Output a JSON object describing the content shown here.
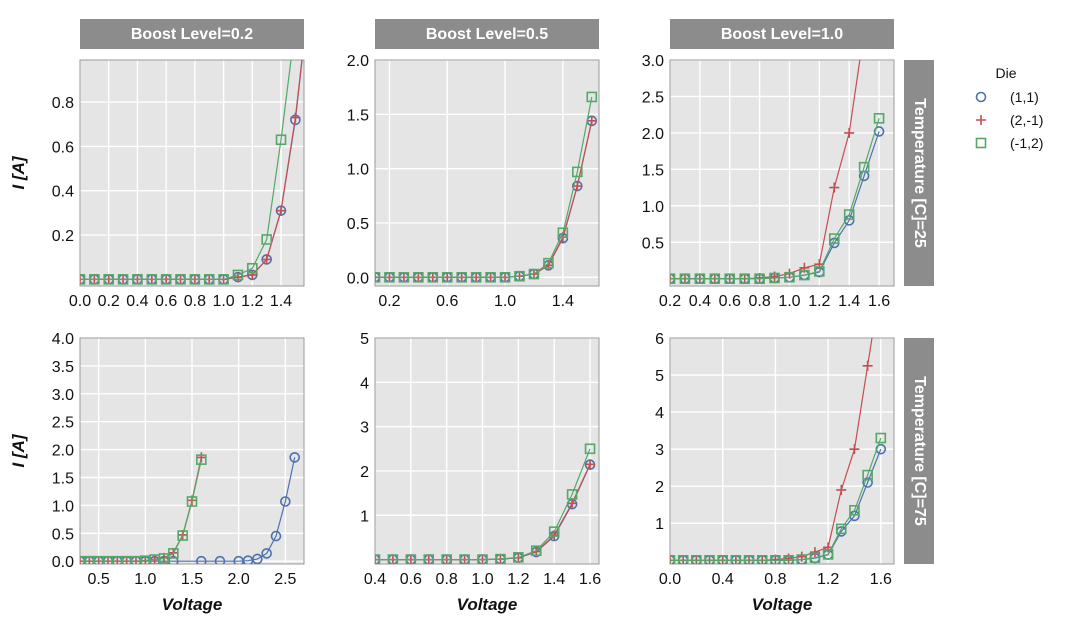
{
  "legend": {
    "title": "Die",
    "entries": [
      {
        "label": "(1,1)",
        "color": "#4c72b0",
        "marker": "circle"
      },
      {
        "label": "(2,-1)",
        "color": "#c44e52",
        "marker": "plus"
      },
      {
        "label": "(-1,2)",
        "color": "#55a868",
        "marker": "square"
      }
    ]
  },
  "chart_data": [
    {
      "type": "line",
      "strip_top": "Boost Level=0.2",
      "strip_right": "",
      "xlabel": "",
      "ylabel": "I [A]",
      "xlim": [
        0.0,
        1.56
      ],
      "ylim": [
        -0.03,
        0.99
      ],
      "xticks": [
        0.0,
        0.2,
        0.4,
        0.6,
        0.8,
        1.0,
        1.2,
        1.4
      ],
      "xtick_labels": [
        "0.0",
        "0.2",
        "0.4",
        "0.6",
        "0.8",
        "1.0",
        "1.2",
        "1.4"
      ],
      "yticks": [
        0.2,
        0.4,
        0.6,
        0.8
      ],
      "ytick_labels": [
        "0.2",
        "0.4",
        "0.6",
        "0.8"
      ],
      "grid": true,
      "series": [
        {
          "name": "(1,1)",
          "x": [
            0.0,
            0.1,
            0.2,
            0.3,
            0.4,
            0.5,
            0.6,
            0.7,
            0.8,
            0.9,
            1.0,
            1.1,
            1.2,
            1.3,
            1.4,
            1.5,
            1.6
          ],
          "y": [
            0.0,
            0.0,
            0.0,
            0.0,
            0.0,
            0.0,
            0.0,
            0.0,
            0.0,
            0.0,
            0.0,
            0.01,
            0.02,
            0.09,
            0.31,
            0.72,
            1.3
          ]
        },
        {
          "name": "(2,-1)",
          "x": [
            0.0,
            0.1,
            0.2,
            0.3,
            0.4,
            0.5,
            0.6,
            0.7,
            0.8,
            0.9,
            1.0,
            1.1,
            1.2,
            1.3,
            1.4,
            1.5,
            1.6
          ],
          "y": [
            0.0,
            0.0,
            0.0,
            0.0,
            0.0,
            0.0,
            0.0,
            0.0,
            0.0,
            0.0,
            0.0,
            0.01,
            0.02,
            0.09,
            0.31,
            0.73,
            1.3
          ]
        },
        {
          "name": "(-1,2)",
          "x": [
            0.0,
            0.1,
            0.2,
            0.3,
            0.4,
            0.5,
            0.6,
            0.7,
            0.8,
            0.9,
            1.0,
            1.1,
            1.2,
            1.3,
            1.4,
            1.5
          ],
          "y": [
            0.0,
            0.0,
            0.0,
            0.0,
            0.0,
            0.0,
            0.0,
            0.0,
            0.0,
            0.0,
            0.0,
            0.02,
            0.05,
            0.18,
            0.63,
            1.15
          ]
        }
      ]
    },
    {
      "type": "line",
      "strip_top": "Boost Level=0.5",
      "strip_right": "",
      "xlabel": "",
      "ylabel": "",
      "xlim": [
        0.1,
        1.65
      ],
      "ylim": [
        -0.08,
        2.0
      ],
      "xticks": [
        0.2,
        0.6,
        1.0,
        1.4
      ],
      "xtick_labels": [
        "0.2",
        "0.6",
        "1.0",
        "1.4"
      ],
      "yticks": [
        0.0,
        0.5,
        1.0,
        1.5,
        2.0
      ],
      "ytick_labels": [
        "0.0",
        "0.5",
        "1.0",
        "1.5",
        "2.0"
      ],
      "grid": true,
      "series": [
        {
          "name": "(1,1)",
          "x": [
            0.1,
            0.2,
            0.3,
            0.4,
            0.5,
            0.6,
            0.7,
            0.8,
            0.9,
            1.0,
            1.1,
            1.2,
            1.3,
            1.4,
            1.5,
            1.6
          ],
          "y": [
            0.0,
            0.0,
            0.0,
            0.0,
            0.0,
            0.0,
            0.0,
            0.0,
            0.0,
            0.0,
            0.01,
            0.03,
            0.11,
            0.36,
            0.84,
            1.44
          ]
        },
        {
          "name": "(2,-1)",
          "x": [
            0.1,
            0.2,
            0.3,
            0.4,
            0.5,
            0.6,
            0.7,
            0.8,
            0.9,
            1.0,
            1.1,
            1.2,
            1.3,
            1.4,
            1.5,
            1.6
          ],
          "y": [
            0.0,
            0.0,
            0.0,
            0.0,
            0.0,
            0.0,
            0.0,
            0.0,
            0.0,
            0.0,
            0.01,
            0.03,
            0.11,
            0.37,
            0.84,
            1.44
          ]
        },
        {
          "name": "(-1,2)",
          "x": [
            0.1,
            0.2,
            0.3,
            0.4,
            0.5,
            0.6,
            0.7,
            0.8,
            0.9,
            1.0,
            1.1,
            1.2,
            1.3,
            1.4,
            1.5,
            1.6
          ],
          "y": [
            0.0,
            0.0,
            0.0,
            0.0,
            0.0,
            0.0,
            0.0,
            0.0,
            0.0,
            0.0,
            0.01,
            0.03,
            0.13,
            0.41,
            0.97,
            1.66
          ]
        }
      ]
    },
    {
      "type": "line",
      "strip_top": "Boost Level=1.0",
      "strip_right": "Temperature [C]=25",
      "xlabel": "",
      "ylabel": "",
      "xlim": [
        0.2,
        1.7
      ],
      "ylim": [
        -0.1,
        3.0
      ],
      "xticks": [
        0.2,
        0.4,
        0.6,
        0.8,
        1.0,
        1.2,
        1.4,
        1.6
      ],
      "xtick_labels": [
        "0.2",
        "0.4",
        "0.6",
        "0.8",
        "1.0",
        "1.2",
        "1.4",
        "1.6"
      ],
      "yticks": [
        0.5,
        1.0,
        1.5,
        2.0,
        2.5,
        3.0
      ],
      "ytick_labels": [
        "0.5",
        "1.0",
        "1.5",
        "2.0",
        "2.5",
        "3.0"
      ],
      "grid": true,
      "series": [
        {
          "name": "(1,1)",
          "x": [
            0.2,
            0.3,
            0.4,
            0.5,
            0.6,
            0.7,
            0.8,
            0.9,
            1.0,
            1.1,
            1.2,
            1.3,
            1.4,
            1.5,
            1.6
          ],
          "y": [
            0.0,
            0.0,
            0.0,
            0.0,
            0.0,
            0.0,
            0.0,
            0.01,
            0.02,
            0.05,
            0.09,
            0.49,
            0.8,
            1.41,
            2.02
          ]
        },
        {
          "name": "(2,-1)",
          "x": [
            0.2,
            0.3,
            0.4,
            0.5,
            0.6,
            0.7,
            0.8,
            0.9,
            1.0,
            1.1,
            1.2,
            1.3,
            1.4,
            1.5
          ],
          "y": [
            0.0,
            0.0,
            0.0,
            0.0,
            0.0,
            0.0,
            0.01,
            0.03,
            0.07,
            0.15,
            0.2,
            1.25,
            2.0,
            3.4
          ]
        },
        {
          "name": "(-1,2)",
          "x": [
            0.2,
            0.3,
            0.4,
            0.5,
            0.6,
            0.7,
            0.8,
            0.9,
            1.0,
            1.1,
            1.2,
            1.3,
            1.4,
            1.5,
            1.6
          ],
          "y": [
            0.0,
            0.0,
            0.0,
            0.0,
            0.0,
            0.0,
            0.0,
            0.01,
            0.02,
            0.05,
            0.1,
            0.55,
            0.88,
            1.53,
            2.2
          ]
        }
      ]
    },
    {
      "type": "line",
      "strip_top": "",
      "strip_right": "",
      "xlabel": "Voltage",
      "ylabel": "I [A]",
      "xlim": [
        0.3,
        2.7
      ],
      "ylim": [
        -0.05,
        4.0
      ],
      "xticks": [
        0.5,
        1.0,
        1.5,
        2.0,
        2.5
      ],
      "xtick_labels": [
        "0.5",
        "1.0",
        "1.5",
        "2.0",
        "2.5"
      ],
      "yticks": [
        0.0,
        0.5,
        1.0,
        1.5,
        2.0,
        2.5,
        3.0,
        3.5,
        4.0
      ],
      "ytick_labels": [
        "0.0",
        "0.5",
        "1.0",
        "1.5",
        "2.0",
        "2.5",
        "3.0",
        "3.5",
        "4.0"
      ],
      "grid": true,
      "series": [
        {
          "name": "(1,1)",
          "x": [
            0.3,
            0.4,
            0.5,
            0.6,
            0.7,
            0.8,
            0.9,
            1.0,
            1.1,
            1.2,
            1.3,
            1.6,
            1.8,
            2.0,
            2.1,
            2.2,
            2.3,
            2.4,
            2.5,
            2.6
          ],
          "y": [
            0.0,
            0.0,
            0.0,
            0.0,
            0.0,
            0.0,
            0.0,
            0.0,
            0.0,
            0.0,
            0.0,
            0.0,
            0.0,
            0.0,
            0.01,
            0.04,
            0.14,
            0.45,
            1.07,
            1.86
          ]
        },
        {
          "name": "(2,-1)",
          "x": [
            0.3,
            0.4,
            0.5,
            0.6,
            0.7,
            0.8,
            0.9,
            1.0,
            1.1,
            1.2,
            1.3,
            1.4,
            1.5,
            1.6
          ],
          "y": [
            0.0,
            0.0,
            0.0,
            0.0,
            0.0,
            0.0,
            0.0,
            0.01,
            0.03,
            0.06,
            0.15,
            0.47,
            1.09,
            1.86
          ]
        },
        {
          "name": "(-1,2)",
          "x": [
            0.3,
            0.4,
            0.5,
            0.6,
            0.7,
            0.8,
            0.9,
            1.0,
            1.1,
            1.2,
            1.3,
            1.4,
            1.5,
            1.6
          ],
          "y": [
            0.0,
            0.0,
            0.0,
            0.0,
            0.0,
            0.0,
            0.0,
            0.01,
            0.03,
            0.05,
            0.14,
            0.46,
            1.07,
            1.82
          ]
        }
      ]
    },
    {
      "type": "line",
      "strip_top": "",
      "strip_right": "",
      "xlabel": "Voltage",
      "ylabel": "",
      "xlim": [
        0.4,
        1.65
      ],
      "ylim": [
        -0.1,
        5.0
      ],
      "xticks": [
        0.4,
        0.6,
        0.8,
        1.0,
        1.2,
        1.4,
        1.6
      ],
      "xtick_labels": [
        "0.4",
        "0.6",
        "0.8",
        "1.0",
        "1.2",
        "1.4",
        "1.6"
      ],
      "yticks": [
        1,
        2,
        3,
        4,
        5
      ],
      "ytick_labels": [
        "1",
        "2",
        "3",
        "4",
        "5"
      ],
      "grid": true,
      "series": [
        {
          "name": "(1,1)",
          "x": [
            0.4,
            0.5,
            0.6,
            0.7,
            0.8,
            0.9,
            1.0,
            1.1,
            1.2,
            1.3,
            1.4,
            1.5,
            1.6
          ],
          "y": [
            0.0,
            0.0,
            0.0,
            0.0,
            0.0,
            0.0,
            0.0,
            0.01,
            0.04,
            0.17,
            0.53,
            1.25,
            2.14
          ]
        },
        {
          "name": "(2,-1)",
          "x": [
            0.4,
            0.5,
            0.6,
            0.7,
            0.8,
            0.9,
            1.0,
            1.1,
            1.2,
            1.3,
            1.4,
            1.5,
            1.6
          ],
          "y": [
            0.0,
            0.0,
            0.0,
            0.0,
            0.0,
            0.0,
            0.0,
            0.01,
            0.04,
            0.18,
            0.55,
            1.27,
            2.15
          ]
        },
        {
          "name": "(-1,2)",
          "x": [
            0.4,
            0.5,
            0.6,
            0.7,
            0.8,
            0.9,
            1.0,
            1.1,
            1.2,
            1.3,
            1.4,
            1.5,
            1.6
          ],
          "y": [
            0.0,
            0.0,
            0.0,
            0.0,
            0.0,
            0.0,
            0.0,
            0.01,
            0.05,
            0.2,
            0.63,
            1.47,
            2.5
          ]
        }
      ]
    },
    {
      "type": "line",
      "strip_top": "",
      "strip_right": "Temperature [C]=75",
      "xlabel": "Voltage",
      "ylabel": "",
      "xlim": [
        0.0,
        1.7
      ],
      "ylim": [
        -0.1,
        6.0
      ],
      "xticks": [
        0.0,
        0.4,
        0.8,
        1.2,
        1.6
      ],
      "xtick_labels": [
        "0.0",
        "0.4",
        "0.8",
        "1.2",
        "1.6"
      ],
      "yticks": [
        1,
        2,
        3,
        4,
        5,
        6
      ],
      "ytick_labels": [
        "1",
        "2",
        "3",
        "4",
        "5",
        "6"
      ],
      "grid": true,
      "series": [
        {
          "name": "(1,1)",
          "x": [
            0.0,
            0.1,
            0.2,
            0.3,
            0.4,
            0.5,
            0.6,
            0.7,
            0.8,
            0.9,
            1.0,
            1.1,
            1.2,
            1.3,
            1.4,
            1.5,
            1.6
          ],
          "y": [
            0.0,
            0.0,
            0.0,
            0.0,
            0.0,
            0.0,
            0.0,
            0.0,
            0.0,
            0.0,
            0.02,
            0.06,
            0.15,
            0.78,
            1.2,
            2.1,
            3.0
          ]
        },
        {
          "name": "(2,-1)",
          "x": [
            0.0,
            0.1,
            0.2,
            0.3,
            0.4,
            0.5,
            0.6,
            0.7,
            0.8,
            0.9,
            1.0,
            1.1,
            1.2,
            1.3,
            1.4,
            1.5,
            1.6
          ],
          "y": [
            0.0,
            0.0,
            0.0,
            0.0,
            0.0,
            0.0,
            0.0,
            0.0,
            0.02,
            0.05,
            0.1,
            0.22,
            0.35,
            1.9,
            3.0,
            5.25,
            7.5
          ]
        },
        {
          "name": "(-1,2)",
          "x": [
            0.0,
            0.1,
            0.2,
            0.3,
            0.4,
            0.5,
            0.6,
            0.7,
            0.8,
            0.9,
            1.0,
            1.1,
            1.2,
            1.3,
            1.4,
            1.5,
            1.6
          ],
          "y": [
            0.0,
            0.0,
            0.0,
            0.0,
            0.0,
            0.0,
            0.0,
            0.0,
            0.0,
            0.0,
            0.02,
            0.07,
            0.16,
            0.85,
            1.35,
            2.3,
            3.3
          ]
        }
      ]
    }
  ]
}
